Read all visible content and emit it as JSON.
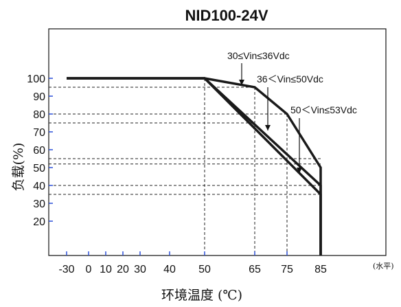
{
  "chart_data": {
    "type": "line",
    "title": "NID100-24V",
    "xlabel": "环境温度 (℃)",
    "ylabel": "负载(%)",
    "x_unit": "(水平)",
    "xlim": [
      -30,
      85
    ],
    "ylim": [
      0,
      120
    ],
    "x_ticks": [
      -30,
      0,
      10,
      20,
      30,
      40,
      50,
      65,
      75,
      85
    ],
    "y_ticks": [
      100,
      90,
      80,
      70,
      60,
      50,
      40,
      30,
      20
    ],
    "series": [
      {
        "name": "30≤Vin≤36Vdc",
        "x": [
          -30,
          50,
          65,
          75,
          85,
          85
        ],
        "y": [
          100,
          100,
          95,
          80,
          50,
          0
        ]
      },
      {
        "name": "36＜Vin≤50Vdc",
        "x": [
          -30,
          50,
          85,
          85
        ],
        "y": [
          100,
          100,
          40,
          0
        ]
      },
      {
        "name": "50＜Vin≤53Vdc",
        "x": [
          -30,
          50,
          85,
          85
        ],
        "y": [
          100,
          100,
          35,
          0
        ]
      }
    ],
    "reference_lines": {
      "horizontal": [
        95,
        80,
        75,
        55,
        52,
        40,
        35
      ],
      "vertical": [
        50,
        65,
        75
      ]
    },
    "grid": false
  }
}
